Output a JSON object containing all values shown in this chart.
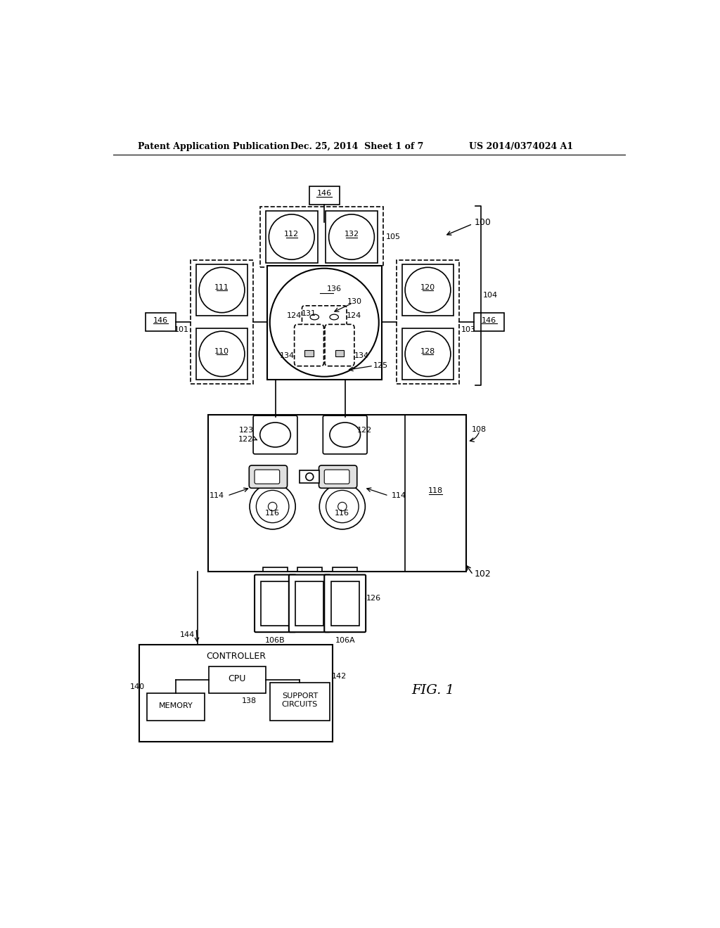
{
  "bg": "#ffffff",
  "lc": "#000000",
  "header1": "Patent Application Publication",
  "header2": "Dec. 25, 2014  Sheet 1 of 7",
  "header3": "US 2014/0374024 A1"
}
